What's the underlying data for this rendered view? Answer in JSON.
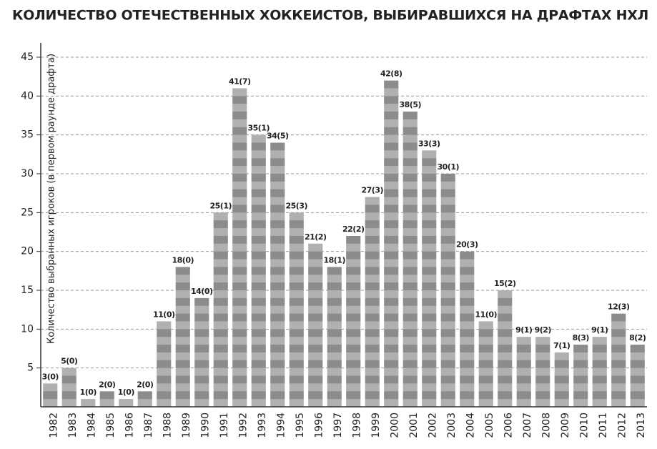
{
  "chart_data": {
    "type": "bar",
    "title": "КОЛИЧЕСТВО ОТЕЧЕСТВЕННЫХ ХОККЕИСТОВ, ВЫБИРАВШИХСЯ НА ДРАФТАХ НХЛ",
    "y_label": "Количество выбранных игроков (в первом раунде драфта)",
    "categories": [
      "1982",
      "1983",
      "1984",
      "1985",
      "1986",
      "1987",
      "1988",
      "1989",
      "1990",
      "1991",
      "1992",
      "1993",
      "1994",
      "1995",
      "1996",
      "1997",
      "1998",
      "1999",
      "2000",
      "2001",
      "2002",
      "2003",
      "2004",
      "2005",
      "2006",
      "2007",
      "2008",
      "2009",
      "2010",
      "2011",
      "2012",
      "2013"
    ],
    "values": [
      3,
      5,
      1,
      2,
      1,
      2,
      11,
      18,
      14,
      25,
      41,
      35,
      34,
      25,
      21,
      18,
      22,
      27,
      42,
      38,
      33,
      30,
      20,
      11,
      15,
      9,
      9,
      7,
      8,
      9,
      12,
      8
    ],
    "value_labels": [
      "3(0)",
      "5(0)",
      "1(0)",
      "2(0)",
      "1(0)",
      "2(0)",
      "11(0)",
      "18(0)",
      "14(0)",
      "25(1)",
      "41(7)",
      "35(1)",
      "34(5)",
      "25(3)",
      "21(2)",
      "18(1)",
      "22(2)",
      "27(3)",
      "42(8)",
      "38(5)",
      "33(3)",
      "30(1)",
      "20(3)",
      "11(0)",
      "15(2)",
      "9(1)",
      "9(2)",
      "7(1)",
      "8(3)",
      "9(1)",
      "12(3)",
      "8(2)"
    ],
    "colors": [
      "#8c8c8c",
      "#b0b0b0"
    ],
    "ylim": [
      0,
      45
    ],
    "yticks": [
      5,
      10,
      15,
      20,
      25,
      30,
      35,
      40,
      45
    ],
    "grid": true
  }
}
